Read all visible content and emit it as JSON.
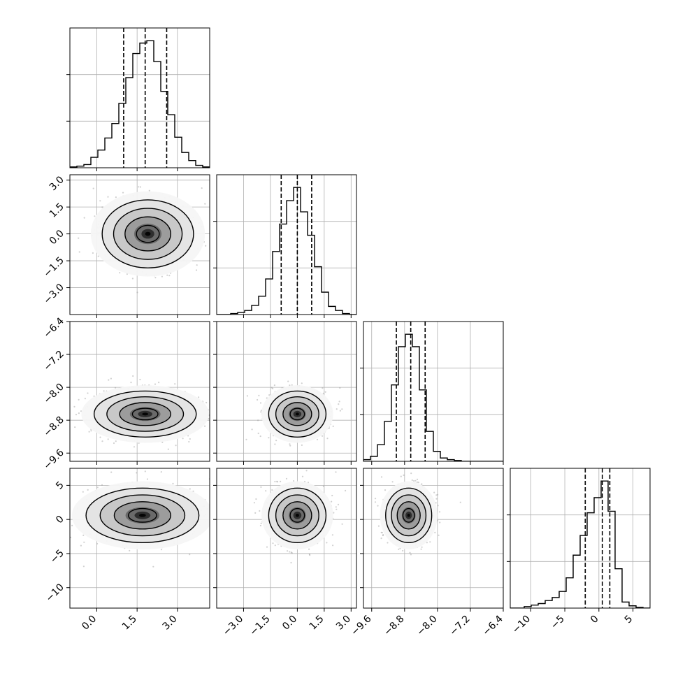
{
  "chart_data": {
    "type": "corner",
    "title": "",
    "parameters": [
      {
        "range": [
          -1.0,
          4.2
        ],
        "ticks": [
          0.0,
          1.5,
          3.0
        ],
        "tick_labels": [
          "0.0",
          "1.5",
          "3.0"
        ],
        "quantiles": [
          1.0,
          1.8,
          2.6
        ],
        "histogram": {
          "edges": [
            -1.0,
            -0.74,
            -0.48,
            -0.22,
            0.04,
            0.3,
            0.56,
            0.82,
            1.08,
            1.34,
            1.6,
            1.86,
            2.12,
            2.38,
            2.64,
            2.9,
            3.16,
            3.42,
            3.68,
            3.94,
            4.2
          ],
          "counts": [
            1,
            2,
            4,
            13,
            22,
            37,
            55,
            80,
            112,
            142,
            155,
            158,
            132,
            95,
            66,
            38,
            19,
            9,
            3,
            1
          ]
        }
      },
      {
        "range": [
          -4.5,
          3.3
        ],
        "ticks": [
          -3.0,
          -1.5,
          0.0,
          1.5,
          3.0
        ],
        "tick_labels": [
          "−3.0",
          "−1.5",
          "0.0",
          "1.5",
          "3.0"
        ],
        "quantiles": [
          -0.9,
          0.0,
          0.8
        ],
        "histogram": {
          "edges": [
            -4.5,
            -4.11,
            -3.72,
            -3.33,
            -2.94,
            -2.55,
            -2.16,
            -1.77,
            -1.38,
            -0.99,
            -0.6,
            -0.21,
            0.18,
            0.57,
            0.96,
            1.35,
            1.74,
            2.13,
            2.52,
            2.91,
            3.3
          ],
          "counts": [
            0,
            0,
            1,
            2,
            4,
            9,
            18,
            35,
            62,
            89,
            112,
            125,
            101,
            78,
            47,
            22,
            8,
            4,
            1,
            0
          ]
        }
      },
      {
        "range": [
          -9.8,
          -6.4
        ],
        "ticks": [
          -9.6,
          -8.8,
          -8.0,
          -7.2,
          -6.4
        ],
        "tick_labels": [
          "−9.6",
          "−8.8",
          "−8.0",
          "−7.2",
          "−6.4"
        ],
        "quantiles": [
          -9.0,
          -8.65,
          -8.3
        ],
        "histogram": {
          "edges": [
            -9.8,
            -9.63,
            -9.46,
            -9.29,
            -9.12,
            -8.95,
            -8.78,
            -8.61,
            -8.44,
            -8.27,
            -8.1,
            -7.93,
            -7.76,
            -7.59,
            -7.42,
            -7.25,
            -7.08,
            -6.91,
            -6.74,
            -6.57,
            -6.4
          ],
          "counts": [
            2,
            6,
            20,
            48,
            92,
            138,
            153,
            138,
            86,
            36,
            12,
            4,
            2,
            1,
            0,
            0,
            0,
            0,
            0,
            0
          ]
        }
      },
      {
        "range": [
          -13.0,
          7.5
        ],
        "ticks": [
          -10,
          -5,
          0,
          5
        ],
        "tick_labels": [
          "−10",
          "−5",
          "0",
          "5"
        ],
        "quantiles": [
          -2.0,
          0.5,
          1.6
        ],
        "histogram": {
          "edges": [
            -13.0,
            -11.975,
            -10.95,
            -9.925,
            -8.9,
            -7.875,
            -6.85,
            -5.825,
            -4.8,
            -3.775,
            -2.75,
            -1.725,
            -0.7,
            0.325,
            1.35,
            2.375,
            3.4,
            4.425,
            5.45,
            6.475,
            7.5
          ],
          "counts": [
            0,
            0,
            2,
            4,
            6,
            10,
            14,
            22,
            40,
            70,
            96,
            126,
            146,
            168,
            128,
            52,
            8,
            3,
            1,
            0
          ]
        }
      }
    ],
    "density": [
      {
        "row": 1,
        "col": 0,
        "center": [
          1.9,
          0.0
        ],
        "sigma": [
          0.85,
          0.95
        ]
      },
      {
        "row": 2,
        "col": 0,
        "center": [
          1.8,
          -8.65
        ],
        "sigma": [
          0.95,
          0.28
        ]
      },
      {
        "row": 2,
        "col": 1,
        "center": [
          0.0,
          -8.65
        ],
        "sigma": [
          0.8,
          0.28
        ]
      },
      {
        "row": 3,
        "col": 0,
        "center": [
          1.7,
          0.6
        ],
        "sigma": [
          1.05,
          2.0
        ]
      },
      {
        "row": 3,
        "col": 1,
        "center": [
          0.0,
          0.6
        ],
        "sigma": [
          0.8,
          2.0
        ]
      },
      {
        "row": 3,
        "col": 2,
        "center": [
          -8.7,
          0.6
        ],
        "sigma": [
          0.28,
          2.0
        ]
      }
    ],
    "grid": true
  }
}
